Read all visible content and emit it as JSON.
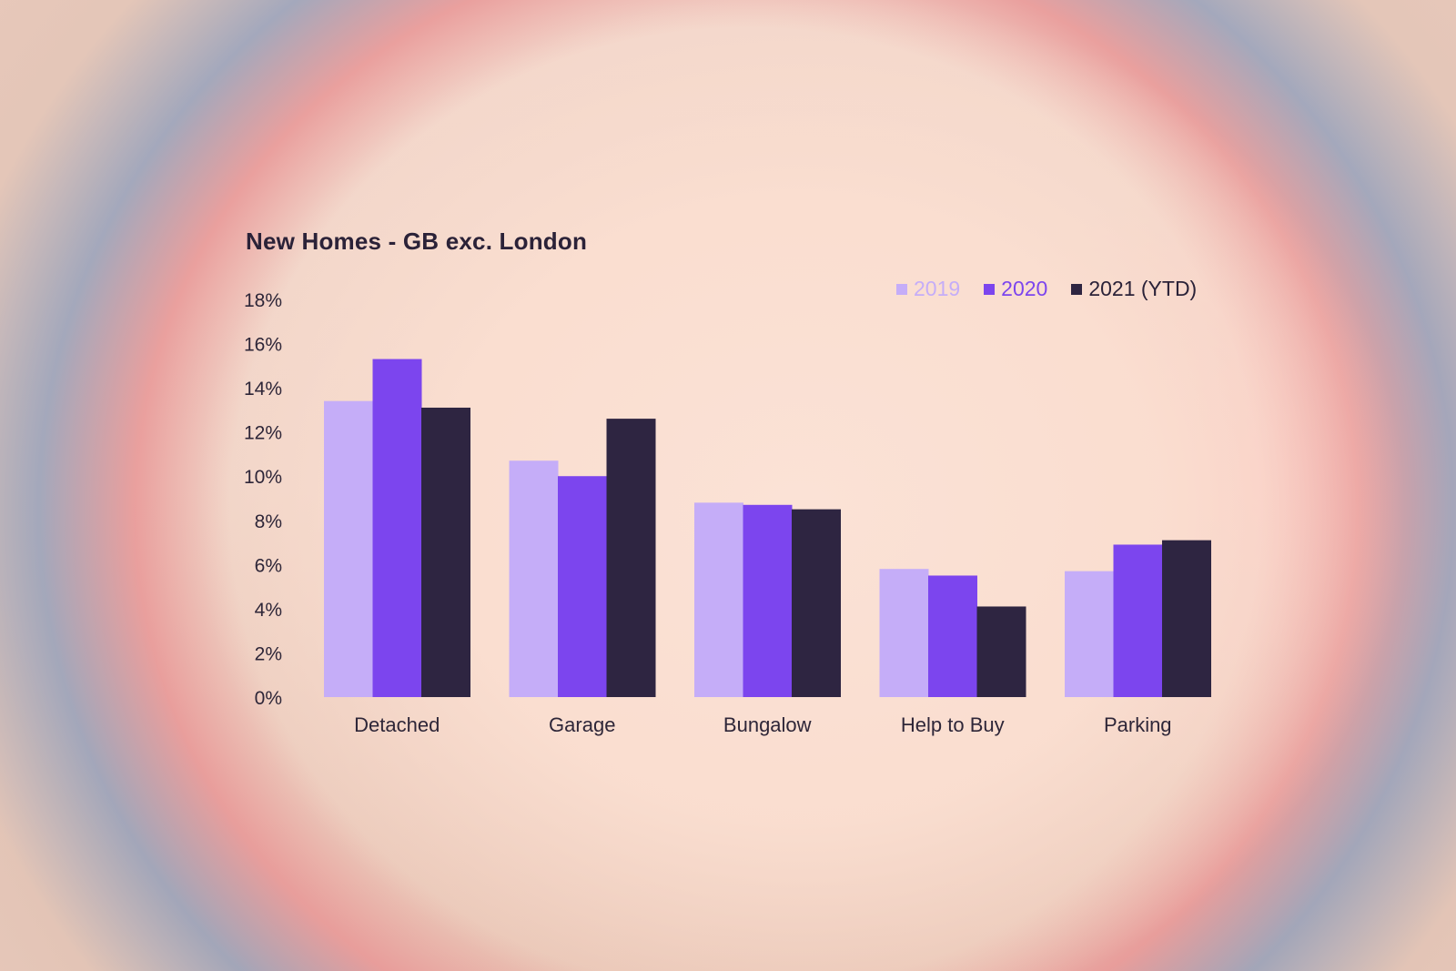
{
  "chart_data": {
    "type": "bar",
    "title": "New Homes - GB exc. London",
    "categories": [
      "Detached",
      "Garage",
      "Bungalow",
      "Help to Buy",
      "Parking"
    ],
    "series": [
      {
        "name": "2019",
        "color": "#c5adf8",
        "values": [
          13.4,
          10.7,
          8.8,
          5.8,
          5.7
        ]
      },
      {
        "name": "2020",
        "color": "#7c45ee",
        "values": [
          15.3,
          10.0,
          8.7,
          5.5,
          6.9
        ]
      },
      {
        "name": "2021 (YTD)",
        "color": "#2e2541",
        "values": [
          13.1,
          12.6,
          8.5,
          4.1,
          7.1
        ]
      }
    ],
    "y_ticks": [
      "0%",
      "2%",
      "4%",
      "6%",
      "8%",
      "10%",
      "12%",
      "14%",
      "16%",
      "18%"
    ],
    "ylim": [
      0,
      18
    ],
    "legend_position": "top-right",
    "grid": false
  }
}
